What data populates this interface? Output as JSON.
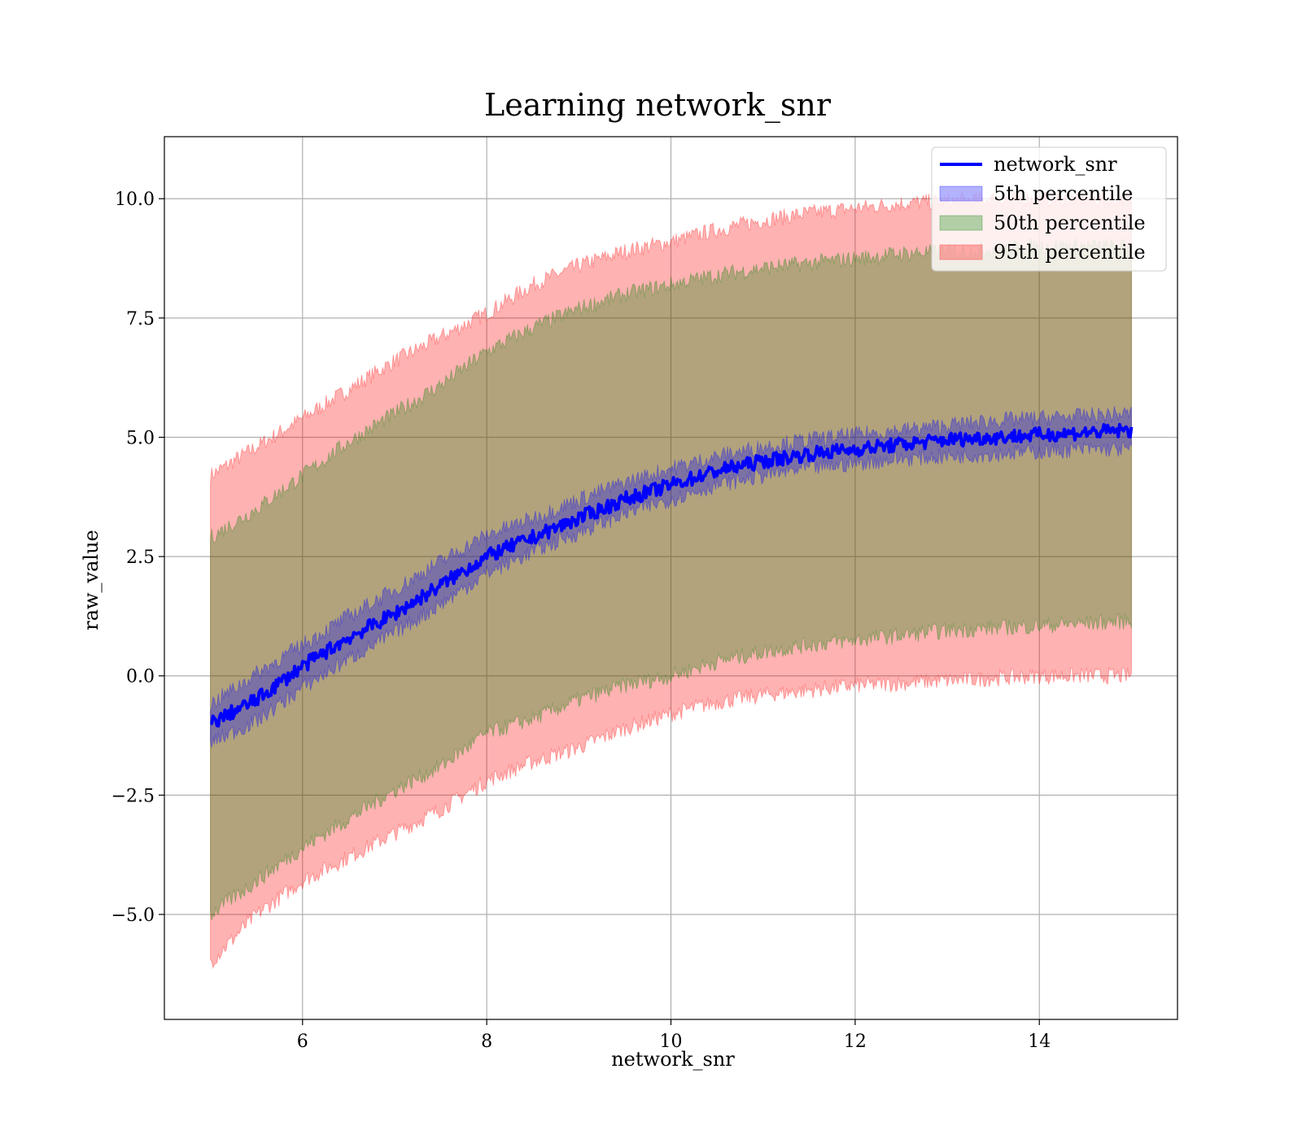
{
  "chart_data": {
    "type": "area",
    "title": "Learning network_snr",
    "xlabel": "network_snr",
    "ylabel": "raw_value",
    "xlim": [
      4.5,
      15.5
    ],
    "ylim": [
      -7.2,
      11.3
    ],
    "xticks": [
      6,
      8,
      10,
      12,
      14
    ],
    "xtick_labels": [
      "6",
      "8",
      "10",
      "12",
      "14"
    ],
    "yticks": [
      -5.0,
      -2.5,
      0.0,
      2.5,
      5.0,
      7.5,
      10.0
    ],
    "ytick_labels": [
      "−5.0",
      "−2.5",
      "0.0",
      "2.5",
      "5.0",
      "7.5",
      "10.0"
    ],
    "grid": true,
    "legend_position": "top-right",
    "x": [
      5,
      5.5,
      6,
      6.5,
      7,
      7.5,
      8,
      8.5,
      9,
      9.5,
      10,
      10.5,
      11,
      11.5,
      12,
      12.5,
      13,
      13.5,
      14,
      14.5,
      15
    ],
    "line": {
      "name": "network_snr",
      "color": "#0000ff",
      "values": [
        -1.0,
        -0.5,
        0.2,
        0.8,
        1.3,
        1.9,
        2.5,
        2.9,
        3.3,
        3.7,
        4.0,
        4.3,
        4.5,
        4.65,
        4.75,
        4.85,
        4.95,
        5.0,
        5.05,
        5.1,
        5.15
      ]
    },
    "bands": [
      {
        "name": "95th percentile",
        "color": "#ff0000",
        "lower": [
          -6.0,
          -5.0,
          -4.3,
          -3.8,
          -3.3,
          -2.8,
          -2.2,
          -1.8,
          -1.5,
          -1.1,
          -0.8,
          -0.55,
          -0.4,
          -0.3,
          -0.2,
          -0.15,
          -0.1,
          -0.05,
          0.0,
          0.0,
          0.0
        ],
        "upper": [
          4.2,
          4.8,
          5.4,
          6.0,
          6.6,
          7.1,
          7.6,
          8.2,
          8.6,
          8.9,
          9.1,
          9.35,
          9.55,
          9.7,
          9.8,
          9.9,
          9.95,
          10.0,
          10.0,
          10.0,
          10.0
        ]
      },
      {
        "name": "50th percentile",
        "color": "#008000",
        "lower": [
          -5.0,
          -4.3,
          -3.6,
          -3.0,
          -2.4,
          -1.9,
          -1.2,
          -0.9,
          -0.5,
          -0.2,
          0.0,
          0.3,
          0.5,
          0.65,
          0.75,
          0.85,
          0.95,
          1.0,
          1.05,
          1.1,
          1.15
        ],
        "upper": [
          2.9,
          3.5,
          4.2,
          4.9,
          5.5,
          6.1,
          6.8,
          7.3,
          7.7,
          8.0,
          8.2,
          8.4,
          8.55,
          8.65,
          8.75,
          8.85,
          8.9,
          8.95,
          9.0,
          9.0,
          9.0
        ]
      },
      {
        "name": "5th percentile",
        "color": "#0000ff",
        "lower": [
          -1.4,
          -0.95,
          -0.25,
          0.35,
          0.9,
          1.5,
          2.15,
          2.6,
          3.0,
          3.4,
          3.7,
          4.0,
          4.2,
          4.35,
          4.45,
          4.55,
          4.6,
          4.65,
          4.7,
          4.75,
          4.75
        ],
        "upper": [
          -0.6,
          0.05,
          0.65,
          1.25,
          1.8,
          2.4,
          2.95,
          3.3,
          3.7,
          4.05,
          4.35,
          4.6,
          4.8,
          4.95,
          5.05,
          5.15,
          5.25,
          5.35,
          5.4,
          5.45,
          5.5
        ]
      }
    ],
    "legend": [
      {
        "label": "network_snr",
        "kind": "line",
        "color": "#0000ff"
      },
      {
        "label": "5th percentile",
        "kind": "patch",
        "color": "#0000ff"
      },
      {
        "label": "50th percentile",
        "kind": "patch",
        "color": "#008000"
      },
      {
        "label": "95th percentile",
        "kind": "patch",
        "color": "#ff0000"
      }
    ]
  }
}
